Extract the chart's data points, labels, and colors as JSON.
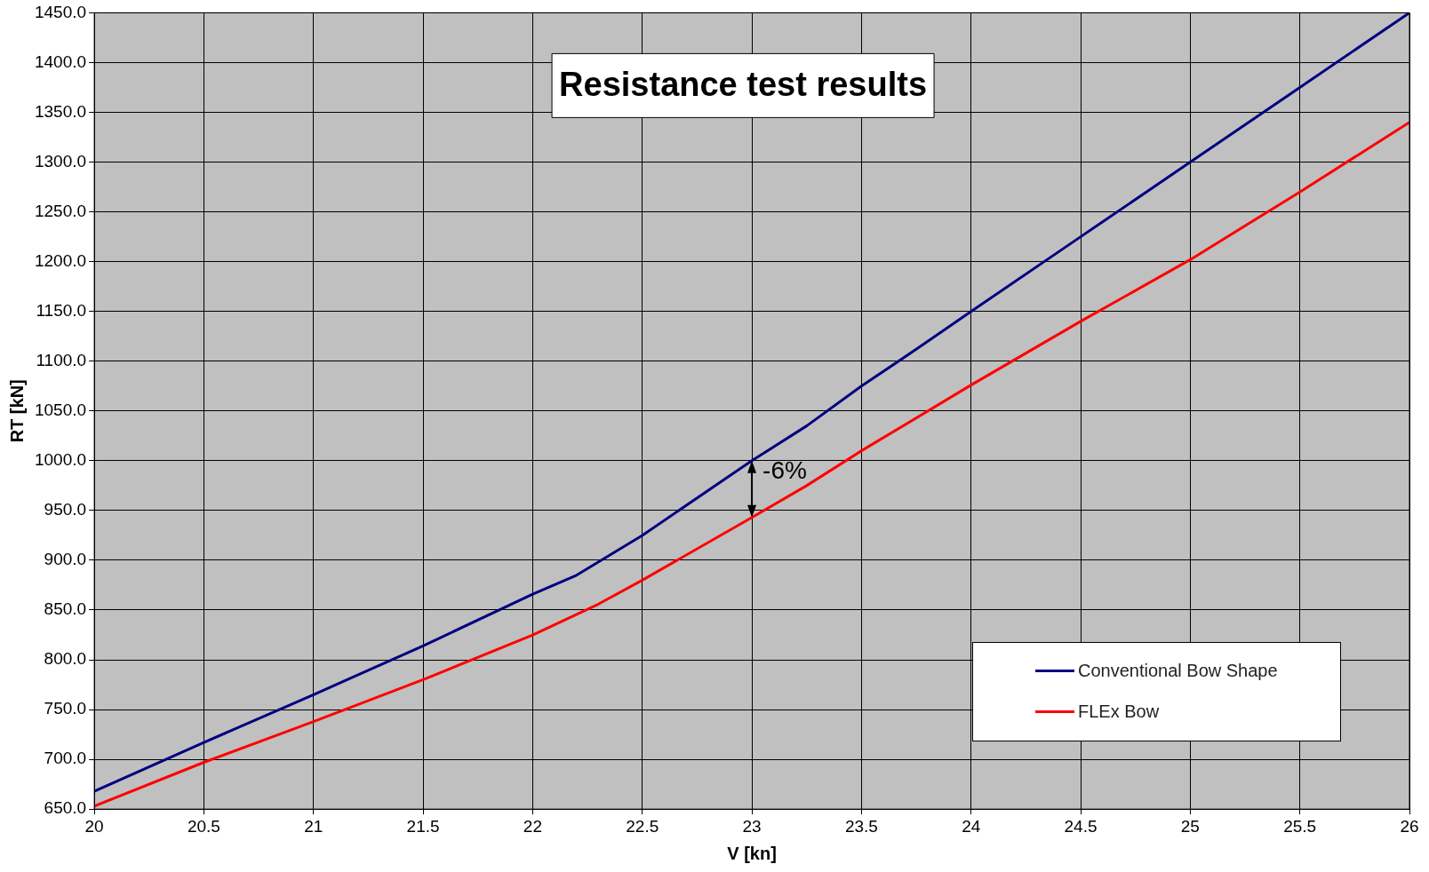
{
  "chart_data": {
    "type": "line",
    "title": "Resistance test results",
    "xlabel": "V [kn]",
    "ylabel": "RT [kN]",
    "xlim": [
      20,
      26
    ],
    "xticks": [
      20,
      20.5,
      21,
      21.5,
      22,
      22.5,
      23,
      23.5,
      24,
      24.5,
      25,
      25.5,
      26
    ],
    "ylim": [
      650,
      1450
    ],
    "yticks": [
      {
        "value": 650,
        "label": "650.0"
      },
      {
        "value": 700,
        "label": "700.0"
      },
      {
        "value": 750,
        "label": "750.0"
      },
      {
        "value": 800,
        "label": "800.0"
      },
      {
        "value": 850,
        "label": "850.0"
      },
      {
        "value": 900,
        "label": "900.0"
      },
      {
        "value": 950,
        "label": "950.0"
      },
      {
        "value": 1000,
        "label": "1000.0"
      },
      {
        "value": 1050,
        "label": "1050.0"
      },
      {
        "value": 1100,
        "label": "1100.0"
      },
      {
        "value": 1150,
        "label": "1150.0"
      },
      {
        "value": 1200,
        "label": "1200.0"
      },
      {
        "value": 1250,
        "label": "1250.0"
      },
      {
        "value": 1300,
        "label": "1300.0"
      },
      {
        "value": 1350,
        "label": "1350.0"
      },
      {
        "value": 1400,
        "label": "1400.0"
      },
      {
        "value": 1450,
        "label": "1450.0"
      }
    ],
    "grid": true,
    "legend": "bottom right",
    "marker": "none",
    "line_style": "solid",
    "annotations": [
      {
        "text": "-6%",
        "x": 23,
        "y": 1000
      }
    ],
    "series": [
      {
        "name": "Conventional Bow Shape",
        "color": "#000080",
        "x": [
          20,
          20.5,
          21,
          21.5,
          22,
          22.2,
          22.5,
          23,
          23.25,
          23.5,
          23.75,
          24,
          24.5,
          25,
          25.5,
          26
        ],
        "values": [
          668,
          717,
          765,
          814,
          866,
          885,
          925,
          1000,
          1035,
          1075,
          1112,
          1150,
          1225,
          1300,
          1375,
          1450
        ]
      },
      {
        "name": "FLEx Bow",
        "color": "#ff0000",
        "x": [
          20,
          20.5,
          21,
          21.5,
          22,
          22.3,
          22.5,
          23,
          23.25,
          23.5,
          24,
          24.5,
          25,
          25.5,
          26
        ],
        "values": [
          653,
          697,
          738,
          780,
          825,
          856,
          880,
          943,
          975,
          1010,
          1076,
          1140,
          1202,
          1270,
          1340
        ]
      }
    ]
  }
}
